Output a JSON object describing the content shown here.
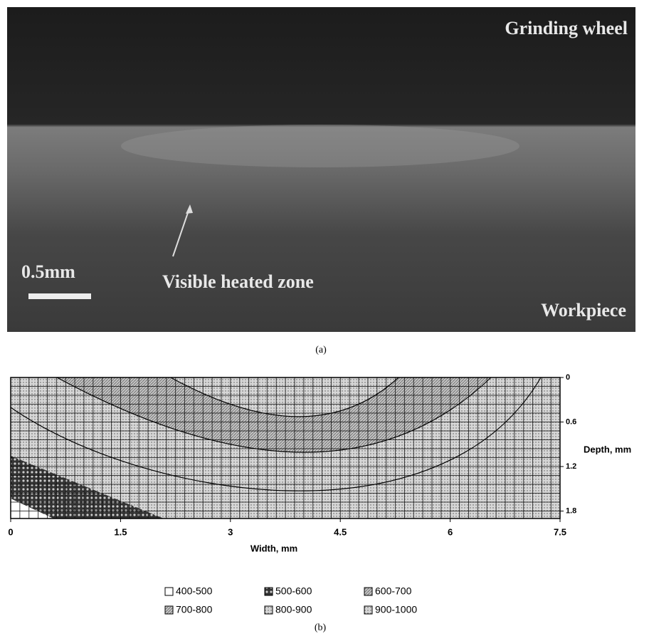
{
  "figure_a": {
    "labels": {
      "wheel": "Grinding wheel",
      "scale": "0.5mm",
      "zone": "Visible heated zone",
      "workpiece": "Workpiece"
    },
    "caption": "(a)"
  },
  "chart_data": {
    "type": "contour",
    "xlabel": "Width, mm",
    "ylabel": "Depth, mm",
    "xlim": [
      0,
      7.5
    ],
    "ylim": [
      0,
      1.9
    ],
    "xticks": [
      0,
      1.5,
      3,
      4.5,
      6,
      7.5
    ],
    "yticks": [
      0,
      0.6,
      1.2,
      1.8
    ],
    "legend": [
      "400-500",
      "500-600",
      "600-700",
      "700-800",
      "800-900",
      "900-1000"
    ]
  },
  "caption_b": "(b)"
}
